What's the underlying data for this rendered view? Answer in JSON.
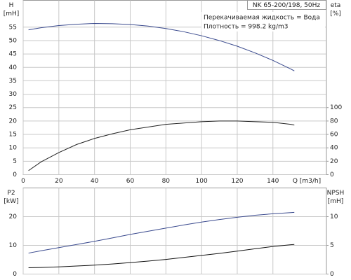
{
  "chart_data": [
    {
      "type": "line",
      "annotations": [
        "NK 65-200/198, 50Hz",
        "Перекачиваемая жидкость = Вода",
        "Плотность = 998.2 kg/m3"
      ],
      "y_label": [
        "H",
        "[mH]"
      ],
      "y2_label": [
        "eta",
        "[%]"
      ],
      "x_label": "Q [m3/h]",
      "x": [
        3,
        10,
        20,
        30,
        40,
        50,
        60,
        70,
        80,
        90,
        100,
        110,
        120,
        130,
        140,
        150,
        152
      ],
      "xlim": [
        0,
        170
      ],
      "xticks": [
        0,
        20,
        40,
        60,
        80,
        100,
        120,
        140
      ],
      "ylim": [
        0,
        65
      ],
      "yticks": [
        0,
        5,
        10,
        15,
        20,
        25,
        30,
        35,
        40,
        45,
        50,
        55
      ],
      "y2lim": [
        0,
        260
      ],
      "y2ticks": [
        0,
        20,
        40,
        60,
        80,
        100
      ],
      "grid": true,
      "series": [
        {
          "name": "H",
          "color": "#3a4a8e",
          "values": [
            54,
            54.8,
            55.6,
            56.1,
            56.4,
            56.3,
            56,
            55.4,
            54.5,
            53.3,
            51.8,
            50,
            47.9,
            45.4,
            42.6,
            39.4,
            38.7
          ]
        },
        {
          "name": "eta",
          "color": "#222222",
          "axis": "y2",
          "values": [
            6,
            19,
            33,
            45,
            54,
            61,
            67,
            71,
            75,
            77,
            79,
            80,
            80,
            79,
            78,
            75,
            74
          ]
        }
      ]
    },
    {
      "type": "line",
      "y_label": [
        "P2",
        "[kW]"
      ],
      "y2_label": [
        "NPSH",
        "[mH]"
      ],
      "x": [
        3,
        10,
        20,
        30,
        40,
        50,
        60,
        70,
        80,
        90,
        100,
        110,
        120,
        130,
        140,
        150,
        152
      ],
      "xlim": [
        0,
        170
      ],
      "xticks": [
        0,
        20,
        40,
        60,
        80,
        100,
        120,
        140
      ],
      "ylim": [
        0,
        30
      ],
      "yticks": [
        0,
        10,
        20
      ],
      "y2lim": [
        0,
        15
      ],
      "y2ticks": [
        0,
        5,
        10
      ],
      "grid": true,
      "series": [
        {
          "name": "P2",
          "color": "#3a4a8e",
          "values": [
            7.3,
            8.1,
            9.2,
            10.3,
            11.4,
            12.6,
            13.8,
            14.9,
            16,
            17.1,
            18.1,
            19,
            19.8,
            20.5,
            21,
            21.4,
            21.5
          ]
        },
        {
          "name": "NPSH",
          "color": "#111111",
          "axis": "y2",
          "values": [
            1.1,
            1.15,
            1.25,
            1.4,
            1.55,
            1.75,
            2.0,
            2.25,
            2.55,
            2.9,
            3.25,
            3.6,
            4.0,
            4.4,
            4.8,
            5.1,
            5.15
          ]
        }
      ]
    }
  ]
}
